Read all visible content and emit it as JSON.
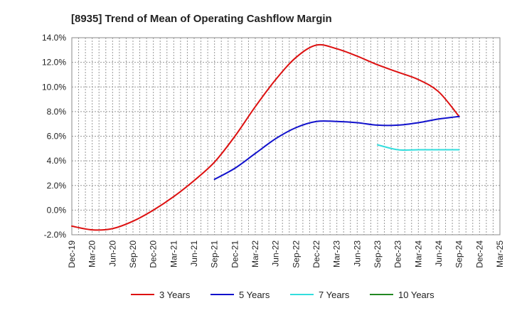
{
  "chart_data": {
    "type": "line",
    "title": "[8935]  Trend of Mean of Operating Cashflow Margin",
    "xlabel": "",
    "ylabel": "",
    "ylim": [
      -2.0,
      14.0
    ],
    "yticks": [
      "-2.0%",
      "0.0%",
      "2.0%",
      "4.0%",
      "6.0%",
      "8.0%",
      "10.0%",
      "12.0%",
      "14.0%"
    ],
    "ytick_values": [
      -2,
      0,
      2,
      4,
      6,
      8,
      10,
      12,
      14
    ],
    "categories": [
      "Dec-19",
      "Mar-20",
      "Jun-20",
      "Sep-20",
      "Dec-20",
      "Mar-21",
      "Jun-21",
      "Sep-21",
      "Dec-21",
      "Mar-22",
      "Jun-22",
      "Sep-22",
      "Dec-22",
      "Mar-23",
      "Jun-23",
      "Sep-23",
      "Dec-23",
      "Mar-24",
      "Jun-24",
      "Sep-24",
      "Dec-24",
      "Mar-25"
    ],
    "grid": true,
    "legend_position": "bottom",
    "series": [
      {
        "name": "3 Years",
        "color": "#dd1111",
        "values": [
          -1.3,
          -1.6,
          -1.5,
          -0.9,
          0.0,
          1.1,
          2.4,
          3.9,
          6.0,
          8.4,
          10.6,
          12.4,
          13.4,
          13.1,
          12.5,
          11.8,
          11.2,
          10.6,
          9.6,
          7.6,
          null,
          null
        ]
      },
      {
        "name": "5 Years",
        "color": "#1111cc",
        "values": [
          null,
          null,
          null,
          null,
          null,
          null,
          null,
          2.5,
          3.4,
          4.6,
          5.8,
          6.7,
          7.2,
          7.2,
          7.1,
          6.9,
          6.9,
          7.1,
          7.4,
          7.6,
          null,
          null
        ]
      },
      {
        "name": "7 Years",
        "color": "#33dddd",
        "values": [
          null,
          null,
          null,
          null,
          null,
          null,
          null,
          null,
          null,
          null,
          null,
          null,
          null,
          null,
          null,
          5.3,
          4.9,
          4.9,
          4.9,
          4.9,
          null,
          null
        ]
      },
      {
        "name": "10 Years",
        "color": "#228822",
        "values": [
          null,
          null,
          null,
          null,
          null,
          null,
          null,
          null,
          null,
          null,
          null,
          null,
          null,
          null,
          null,
          null,
          null,
          null,
          null,
          null,
          null,
          null
        ]
      }
    ]
  }
}
